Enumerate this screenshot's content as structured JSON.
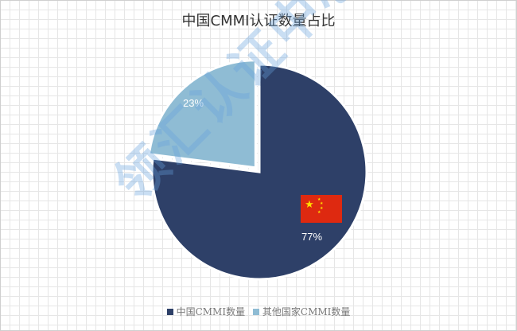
{
  "chart_data": {
    "type": "pie",
    "title": "中国CMMI认证数量占比",
    "series": [
      {
        "name": "中国CMMI数量",
        "value": 77,
        "label": "77%",
        "color": "#2e4068"
      },
      {
        "name": "其他国家CMMI数量",
        "value": 23,
        "label": "23%",
        "color": "#8fbcd4"
      }
    ],
    "legend_position": "bottom",
    "grid": true
  },
  "watermark": "领汇认证中心",
  "icons": {
    "china_flag": "china-flag-icon"
  }
}
